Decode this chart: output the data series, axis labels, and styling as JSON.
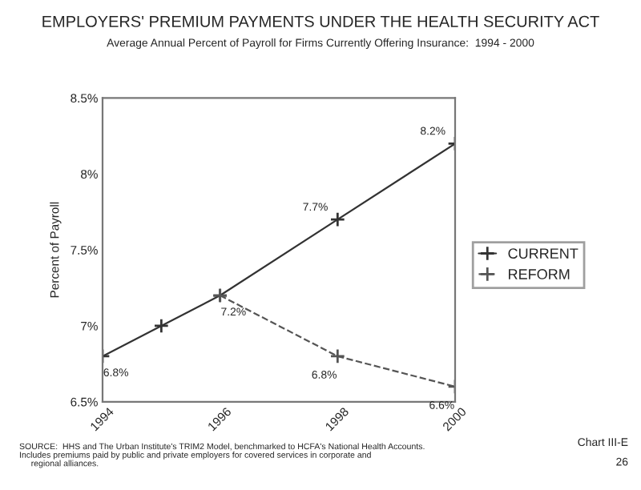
{
  "chart_data": {
    "type": "line",
    "title": "EMPLOYERS' PREMIUM PAYMENTS UNDER THE HEALTH SECURITY ACT",
    "subtitle": "Average Annual Percent of Payroll for Firms Currently Offering Insurance:  1994 - 2000",
    "ylabel": "Percent of Payroll",
    "series": [
      {
        "name": "CURRENT",
        "color": "#333333",
        "line_style": "solid",
        "x": [
          1994,
          1995,
          1996,
          1998,
          2000
        ],
        "values": [
          6.8,
          7.0,
          7.2,
          7.7,
          8.2
        ],
        "value_labels": [
          "6.8%",
          null,
          "7.2%",
          "7.7%",
          "8.2%"
        ]
      },
      {
        "name": "REFORM",
        "color": "#555555",
        "line_style": "dashed",
        "x": [
          1996,
          1998,
          2000
        ],
        "values": [
          7.2,
          6.8,
          6.6
        ],
        "value_labels": [
          null,
          "6.8%",
          "6.6%"
        ]
      }
    ],
    "marker": "cross",
    "xlim": [
      1994,
      2000
    ],
    "xticks": [
      1994,
      1996,
      1998,
      2000
    ],
    "ylim": [
      6.5,
      8.5
    ],
    "yticks": [
      {
        "value": 6.5,
        "label": "6.5%"
      },
      {
        "value": 7,
        "label": "7%"
      },
      {
        "value": 7.5,
        "label": "7.5%"
      },
      {
        "value": 8,
        "label": "8%"
      },
      {
        "value": 8.5,
        "label": "8.5%"
      }
    ],
    "grid": false,
    "legend": "right",
    "annotations": [
      "SOURCE:  HHS and The Urban Institute's TRIM2 Model, benchmarked to HCFA's National Health Accounts.\nIncludes premiums paid by public and private employers for covered services in corporate and\n     regional alliances.",
      "Chart III-E",
      "26"
    ]
  }
}
